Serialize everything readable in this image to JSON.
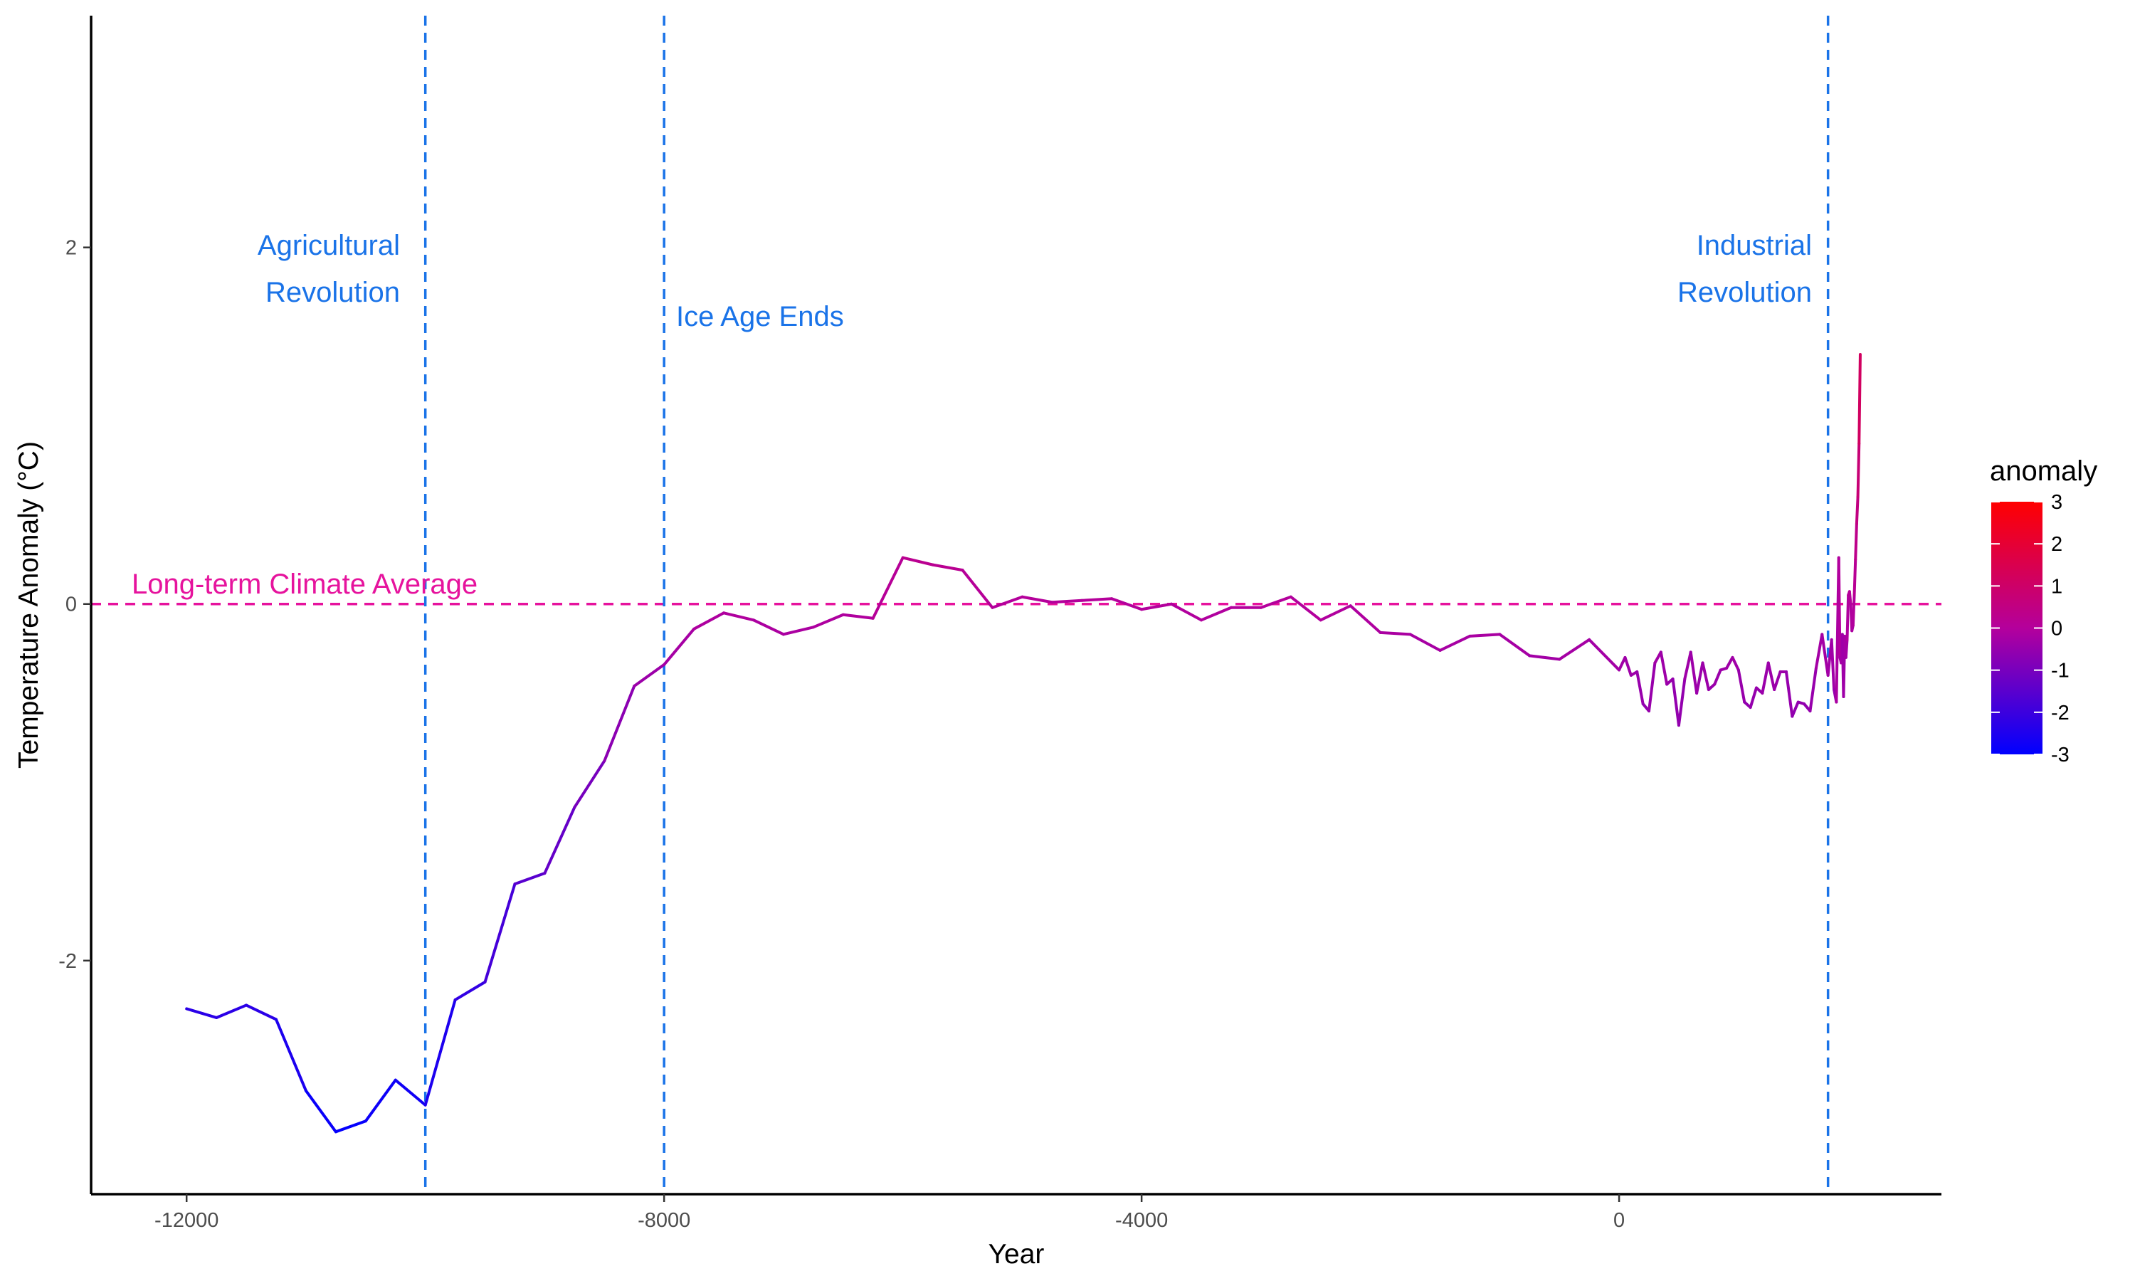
{
  "chart_data": {
    "type": "line",
    "title": "",
    "xlabel": "Year",
    "ylabel": "Temperature Anomaly (°C)",
    "xlim": [
      -12800,
      2700
    ],
    "ylim": [
      -3.31,
      3.3
    ],
    "x_ticks": [
      -12000,
      -8000,
      -4000,
      0
    ],
    "y_ticks": [
      -2,
      0,
      2
    ],
    "x_tick_labels": [
      "-12000",
      "-8000",
      "-4000",
      "0"
    ],
    "y_tick_labels": [
      "-2",
      "0",
      "2"
    ],
    "grid": false,
    "legend": {
      "title": "anomaly",
      "type": "colorbar",
      "placement": "right",
      "range": [
        -3,
        3
      ],
      "labels": [
        "3",
        "2",
        "1",
        "0",
        "-1",
        "-2",
        "-3"
      ],
      "low_color": "#0000ff",
      "high_color": "#ff0000"
    },
    "reference_lines": [
      {
        "orientation": "horizontal",
        "value": 0,
        "label": "Long-term Climate Average",
        "color": "#e6139d"
      },
      {
        "orientation": "vertical",
        "value": -10000,
        "label_lines": [
          "Agricultural",
          "Revolution"
        ],
        "color": "#1a73e8"
      },
      {
        "orientation": "vertical",
        "value": -8000,
        "label_lines": [
          "Ice Age Ends"
        ],
        "color": "#1a73e8"
      },
      {
        "orientation": "vertical",
        "value": 1750,
        "label_lines": [
          "Industrial",
          "Revolution"
        ],
        "color": "#1a73e8"
      }
    ],
    "series": [
      {
        "x": [
          -12000,
          -11750,
          -11500,
          -11250,
          -11000,
          -10750,
          -10500,
          -10250,
          -10000,
          -9750,
          -9500,
          -9250,
          -9000,
          -8750,
          -8500,
          -8250,
          -8000,
          -7750,
          -7500,
          -7250,
          -7000,
          -6750,
          -6500,
          -6250,
          -6000,
          -5750,
          -5500,
          -5250,
          -5000,
          -4750,
          -4500,
          -4250,
          -4000,
          -3750,
          -3500,
          -3250,
          -3000,
          -2750,
          -2500,
          -2250,
          -2000,
          -1750,
          -1500,
          -1250,
          -1000,
          -750,
          -500,
          -250,
          0,
          50,
          100,
          150,
          200,
          250,
          300,
          350,
          400,
          450,
          500,
          550,
          600,
          650,
          700,
          750,
          800,
          850,
          900,
          950,
          1000,
          1050,
          1100,
          1150,
          1200,
          1250,
          1300,
          1350,
          1400,
          1450,
          1500,
          1550,
          1600,
          1650,
          1700,
          1750,
          1780,
          1800,
          1820,
          1840,
          1850,
          1860,
          1870,
          1880,
          1890,
          1900,
          1910,
          1920,
          1930,
          1940,
          1950,
          1960,
          1970,
          1980,
          1990,
          2000,
          2010,
          2020
        ],
        "y": [
          -2.27,
          -2.32,
          -2.25,
          -2.33,
          -2.73,
          -2.96,
          -2.9,
          -2.67,
          -2.81,
          -2.22,
          -2.12,
          -1.57,
          -1.51,
          -1.14,
          -0.88,
          -0.46,
          -0.34,
          -0.14,
          -0.05,
          -0.09,
          -0.17,
          -0.13,
          -0.06,
          -0.08,
          0.26,
          0.22,
          0.19,
          -0.02,
          0.04,
          0.01,
          0.02,
          0.03,
          -0.03,
          0.0,
          -0.09,
          -0.02,
          -0.02,
          0.04,
          -0.09,
          -0.01,
          -0.16,
          -0.17,
          -0.26,
          -0.18,
          -0.17,
          -0.29,
          -0.31,
          -0.2,
          -0.37,
          -0.3,
          -0.4,
          -0.38,
          -0.56,
          -0.6,
          -0.33,
          -0.27,
          -0.45,
          -0.42,
          -0.68,
          -0.42,
          -0.27,
          -0.5,
          -0.33,
          -0.48,
          -0.45,
          -0.37,
          -0.36,
          -0.3,
          -0.37,
          -0.55,
          -0.58,
          -0.47,
          -0.5,
          -0.33,
          -0.48,
          -0.38,
          -0.38,
          -0.63,
          -0.55,
          -0.56,
          -0.6,
          -0.36,
          -0.17,
          -0.4,
          -0.2,
          -0.48,
          -0.55,
          0.26,
          -0.3,
          -0.33,
          -0.17,
          -0.52,
          -0.18,
          -0.3,
          -0.2,
          0.05,
          0.07,
          0.0,
          -0.15,
          -0.12,
          0.05,
          0.25,
          0.45,
          0.6,
          0.9,
          1.4
        ]
      }
    ]
  }
}
